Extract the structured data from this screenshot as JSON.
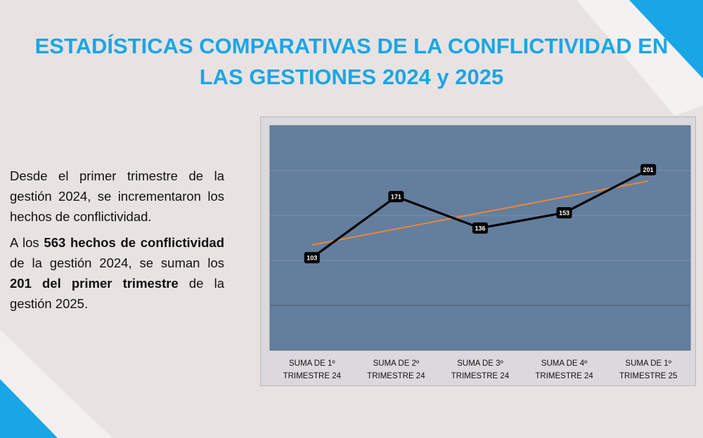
{
  "title": {
    "line1": "ESTADÍSTICAS COMPARATIVAS DE LA CONFLICTIVIDAD EN",
    "line2": "LAS GESTIONES 2024 y 2025"
  },
  "paragraph1": "Desde el primer trimestre de la gestión 2024, se incrementaron los hechos de conflictividad.",
  "paragraph2": {
    "t1": "A los ",
    "b1": "563 hechos de conflictividad",
    "t2": " de la gestión 2024, se suman los ",
    "b2": "201 del primer trimestre",
    "t3": " de la gestión 2025."
  },
  "colors": {
    "accent": "#1aa6e6",
    "plot_bg": "#647e9e",
    "series_line": "#000000",
    "trend_line": "#e8883a"
  },
  "chart_data": {
    "type": "line",
    "categories": [
      [
        "SUMA DE 1º",
        "TRIMESTRE 24"
      ],
      [
        "SUMA DE 2º",
        "TRIMESTRE 24"
      ],
      [
        "SUMA DE 3º",
        "TRIMESTRE 24"
      ],
      [
        "SUMA DE 4º",
        "TRIMESTRE 24"
      ],
      [
        "SUMA DE 1º",
        "TRIMESTRE 25"
      ]
    ],
    "values": [
      103,
      171,
      136,
      153,
      201
    ],
    "trendline": {
      "type": "linear"
    },
    "ylim": [
      0,
      250
    ],
    "grid": true,
    "data_labels": true
  }
}
